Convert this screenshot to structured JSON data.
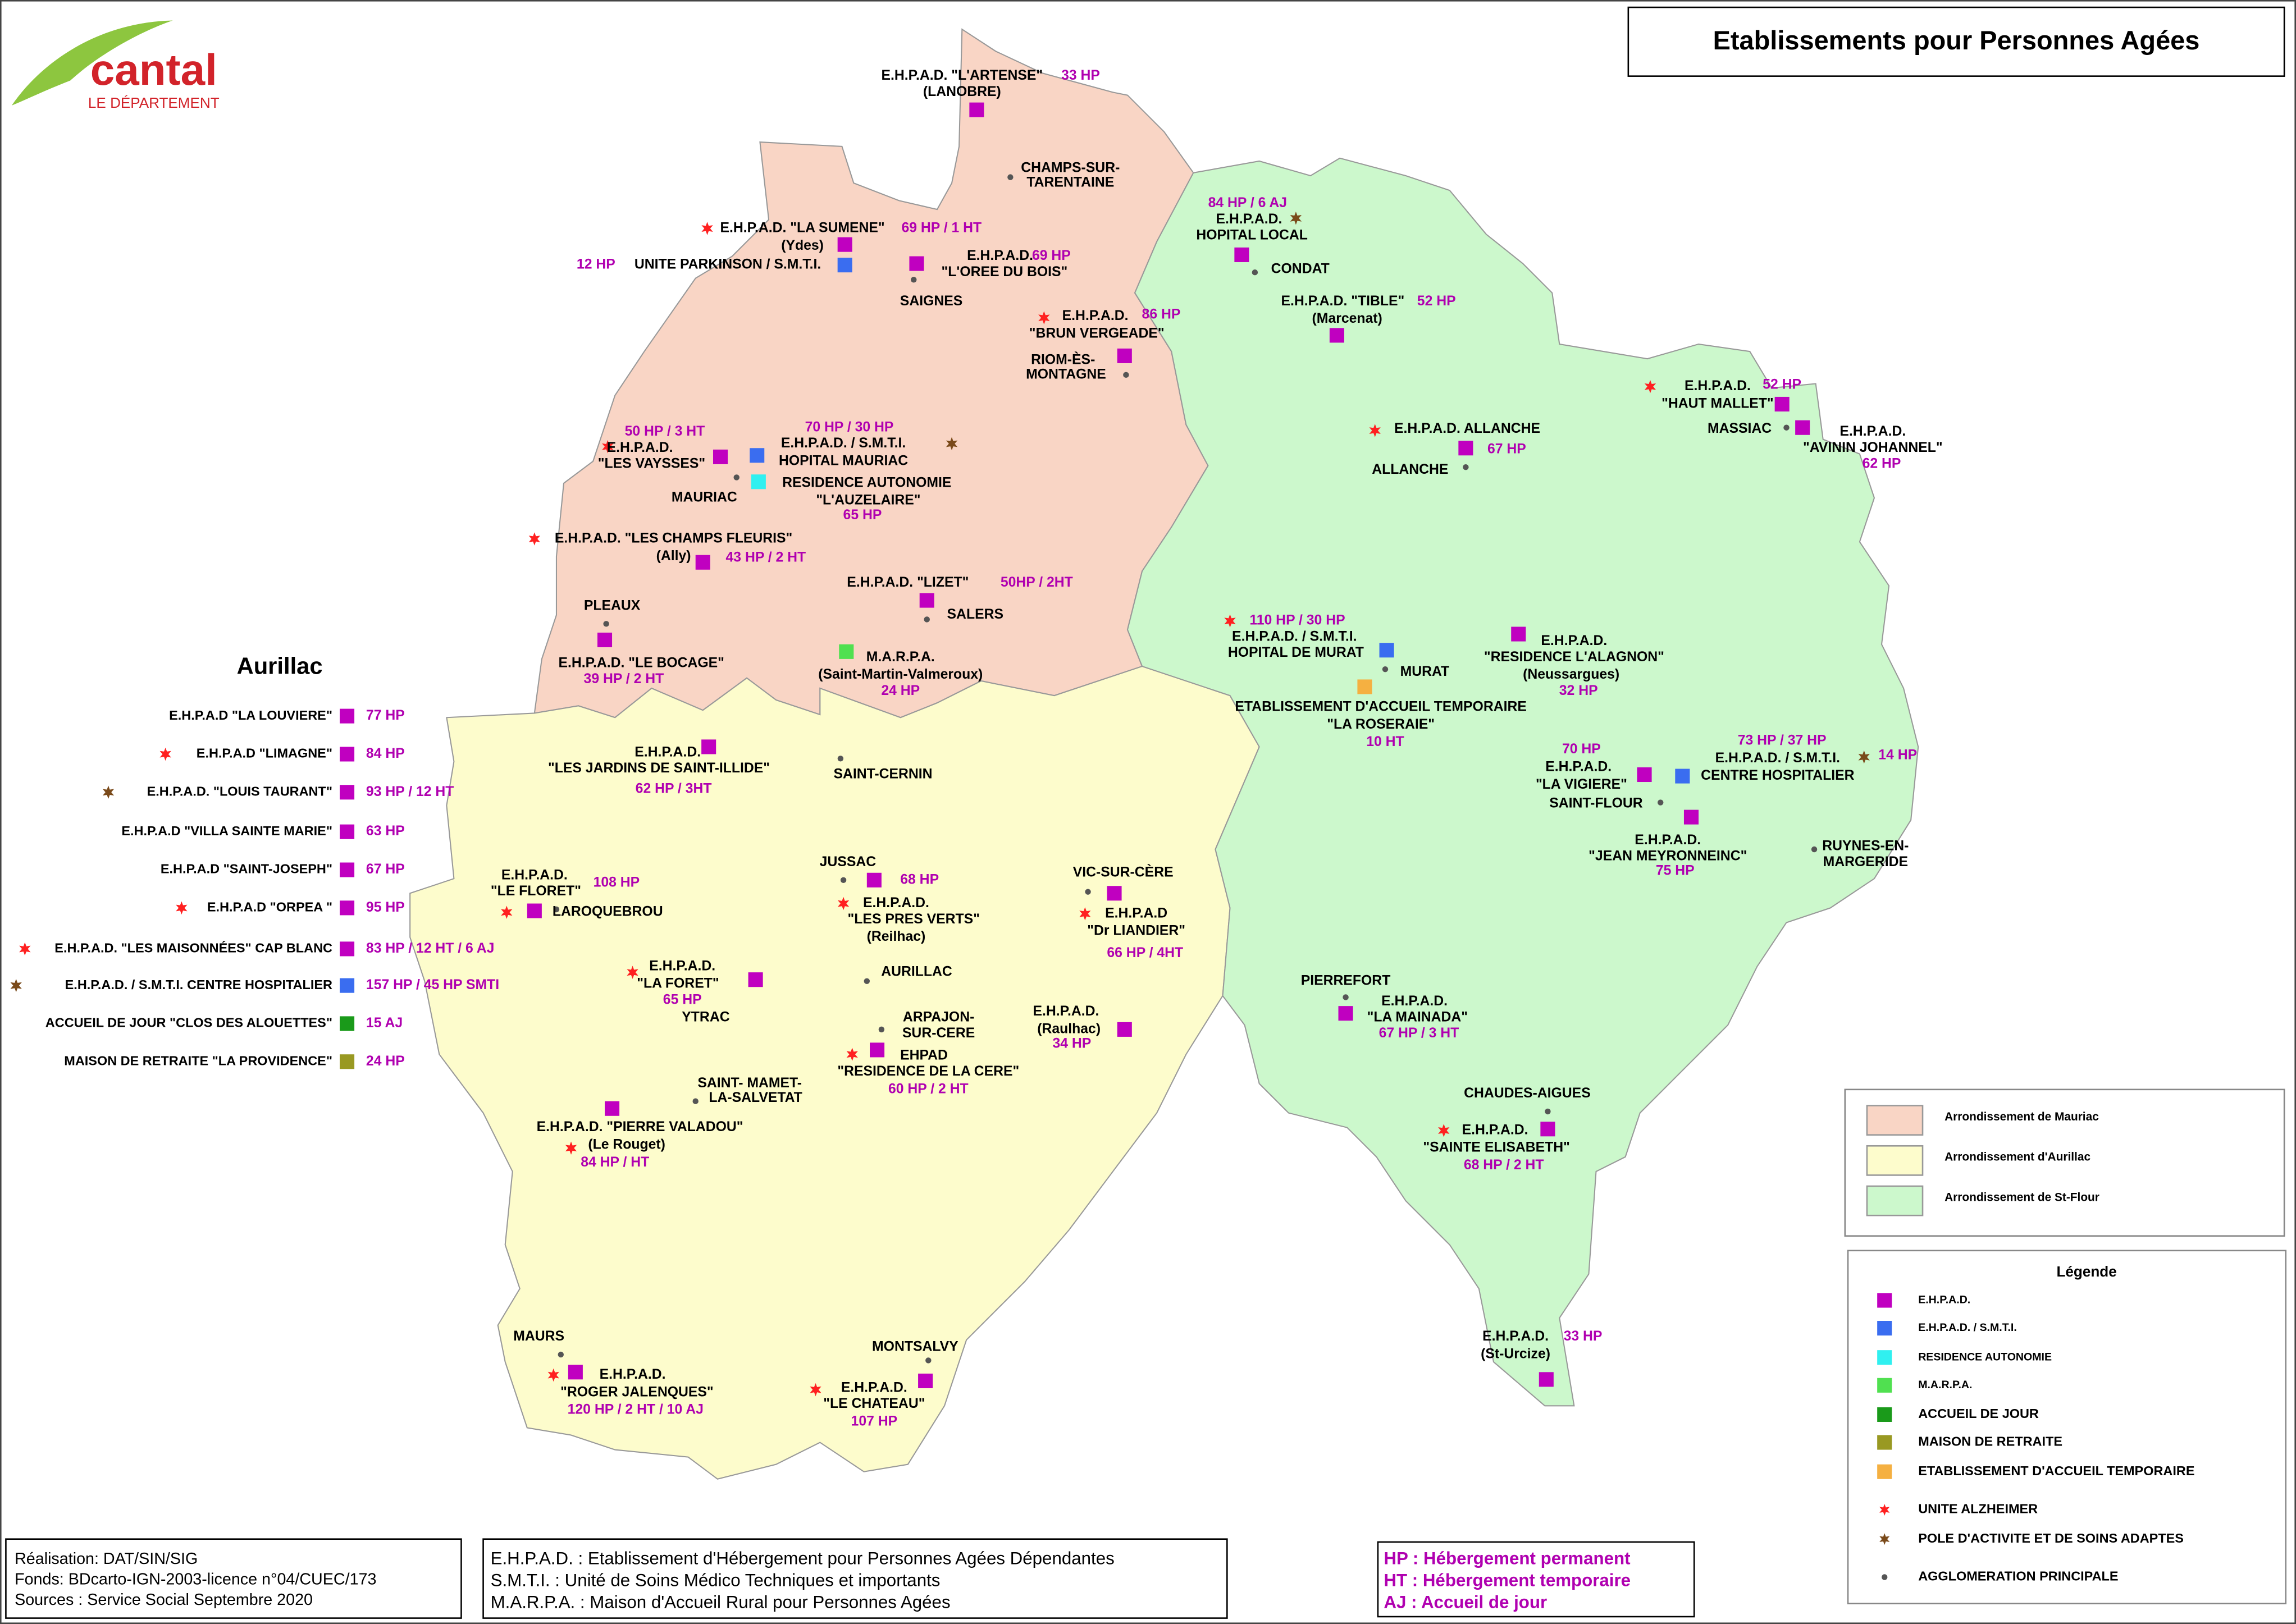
{
  "logo": {
    "name": "cantal",
    "subtitle": "LE DÉPARTEMENT"
  },
  "title": "Etablissements pour Personnes Agées",
  "aurillac_heading": "Aurillac",
  "aurillac_list": [
    {
      "name": "E.H.P.A.D \"LA LOUVIERE\"",
      "capacity": "77 HP"
    },
    {
      "name": "E.H.P.A.D \"LIMAGNE\"",
      "capacity": "84 HP"
    },
    {
      "name": "E.H.P.A.D. \"LOUIS TAURANT\"",
      "capacity": "93 HP / 12 HT"
    },
    {
      "name": "E.H.P.A.D \"VILLA SAINTE MARIE\"",
      "capacity": "63 HP"
    },
    {
      "name": "E.H.P.A.D \"SAINT-JOSEPH\"",
      "capacity": "67 HP"
    },
    {
      "name": "E.H.P.A.D \"ORPEA \"",
      "capacity": "95 HP"
    },
    {
      "name": "E.H.P.A.D. \"LES MAISONNÉES\" CAP BLANC",
      "capacity": "83 HP / 12 HT / 6 AJ"
    },
    {
      "name": "E.H.P.A.D. / S.M.T.I. CENTRE HOSPITALIER",
      "capacity": "157 HP / 45 HP SMTI"
    },
    {
      "name": "ACCUEIL DE JOUR \"CLOS DES ALOUETTES\"",
      "capacity": "15 AJ"
    },
    {
      "name": "MAISON DE RETRAITE \"LA PROVIDENCE\"",
      "capacity": "24 HP"
    }
  ],
  "labels": [
    "E.H.P.A.D. \"L'ARTENSE\"",
    "33 HP",
    "(LANOBRE)",
    "CHAMPS-SUR-",
    "TARENTAINE",
    "84 HP / 6 AJ",
    "E.H.P.A.D.",
    "HOPITAL LOCAL",
    "CONDAT",
    "E.H.P.A.D. \"LA SUMENE\"",
    "69 HP / 1 HT",
    "(Ydes)",
    "12 HP",
    "UNITE PARKINSON / S.M.T.I.",
    "E.H.P.A.D.",
    "69 HP",
    "\"L'OREE DU BOIS\"",
    "SAIGNES",
    "E.H.P.A.D. \"TIBLE\"",
    "52 HP",
    "(Marcenat)",
    "E.H.P.A.D.",
    "86 HP",
    "\"BRUN VERGEADE\"",
    "RIOM-ÈS-",
    "MONTAGNE",
    "E.H.P.A.D.",
    "52 HP",
    "\"HAUT MALLET\"",
    "MASSIAC",
    "E.H.P.A.D.",
    "\"AVININ JOHANNEL\"",
    "62 HP",
    "E.H.P.A.D. ALLANCHE",
    "67 HP",
    "ALLANCHE",
    "50 HP / 3 HT",
    "E.H.P.A.D.",
    "\"LES VAYSSES\"",
    "MAURIAC",
    "70 HP  /  30 HP",
    "E.H.P.A.D. / S.M.T.I.",
    "HOPITAL MAURIAC",
    "RESIDENCE AUTONOMIE",
    "\"L'AUZELAIRE\"",
    "65 HP",
    "E.H.P.A.D. \"LES CHAMPS FLEURIS\"",
    "(Ally)",
    "43 HP / 2 HT",
    "E.H.P.A.D.  \"LIZET\"",
    "50HP / 2HT",
    "SALERS",
    "PLEAUX",
    "E.H.P.A.D. \"LE BOCAGE\"",
    "39 HP / 2 HT",
    "M.A.R.P.A.",
    "(Saint-Martin-Valmeroux)",
    "24 HP",
    "110 HP  /  30 HP",
    "E.H.P.A.D. / S.M.T.I.",
    "HOPITAL DE MURAT",
    "MURAT",
    "ETABLISSEMENT D'ACCUEIL TEMPORAIRE",
    "\"LA ROSERAIE\"",
    "10 HT",
    "E.H.P.A.D.",
    "\"RESIDENCE L'ALAGNON\"",
    "(Neussargues)",
    "32 HP",
    "E.H.P.A.D.",
    "\"LES JARDINS DE SAINT-ILLIDE\"",
    "62 HP / 3HT",
    "SAINT-CERNIN",
    "70 HP",
    "E.H.P.A.D.",
    "\"LA VIGIERE\"",
    "SAINT-FLOUR",
    "73 HP  /  37 HP",
    "E.H.P.A.D. / S.M.T.I.",
    "CENTRE HOSPITALIER",
    "14 HP",
    "E.H.P.A.D.",
    "\"JEAN MEYRONNEINC\"",
    "75 HP",
    "RUYNES-EN-",
    "MARGERIDE",
    "JUSSAC",
    "68 HP",
    "VIC-SUR-CÈRE",
    "E.H.P.A.D.",
    "\"LE FLORET\"",
    "108 HP",
    "LAROQUEBROU",
    "E.H.P.A.D.",
    "\"LES PRES VERTS\"",
    "(Reilhac)",
    "E.H.P.A.D",
    "\"Dr LIANDIER\"",
    "66 HP / 4HT",
    "E.H.P.A.D.",
    "\"LA FORET\"",
    "65 HP",
    "YTRAC",
    "AURILLAC",
    "PIERREFORT",
    "E.H.P.A.D.",
    "\"LA MAINADA\"",
    "67 HP / 3 HT",
    "ARPAJON-",
    "SUR-CERE",
    "EHPAD",
    "\"RESIDENCE DE LA CERE\"",
    "60 HP / 2 HT",
    "E.H.P.A.D.",
    "(Raulhac)",
    "34 HP",
    "SAINT- MAMET-",
    "LA-SALVETAT",
    "E.H.P.A.D. \"PIERRE VALADOU\"",
    "(Le Rouget)",
    "84 HP / HT",
    "CHAUDES-AIGUES",
    "E.H.P.A.D.",
    "\"SAINTE ELISABETH\"",
    "68 HP / 2 HT",
    "MAURS",
    "E.H.P.A.D.",
    "\"ROGER JALENQUES\"",
    "120 HP / 2 HT / 10 AJ",
    "MONTSALVY",
    "E.H.P.A.D.",
    "\"LE CHATEAU\"",
    "107 HP",
    "E.H.P.A.D.",
    "33 HP",
    "(St-Urcize)"
  ],
  "arrondissements": [
    "Arrondissement de Mauriac",
    "Arrondissement d'Aurillac",
    "Arrondissement de St-Flour"
  ],
  "legend": {
    "title": "Légende",
    "items": [
      "E.H.P.A.D.",
      "E.H.P.A.D. / S.M.T.I.",
      "RESIDENCE AUTONOMIE",
      "M.A.R.P.A.",
      "ACCUEIL DE JOUR",
      "MAISON DE RETRAITE",
      "ETABLISSEMENT D'ACCUEIL TEMPORAIRE",
      "UNITE ALZHEIMER",
      "POLE D'ACTIVITE ET DE SOINS ADAPTES",
      "AGGLOMERATION PRINCIPALE"
    ]
  },
  "credits": [
    "Réalisation: DAT/SIN/SIG",
    "Fonds: BDcarto-IGN-2003-licence n°04/CUEC/173",
    "Sources : Service Social Septembre 2020"
  ],
  "abbreviations": [
    "E.H.P.A.D. : Etablissement d'Hébergement pour Personnes Agées Dépendantes",
    "S.M.T.I. : Unité de Soins Médico Techniques et importants",
    "M.A.R.P.A. : Maison d'Accueil Rural pour Personnes Agées"
  ],
  "units": [
    "HP : Hébergement permanent",
    "HT : Hébergement temporaire",
    "AJ : Accueil de jour"
  ]
}
